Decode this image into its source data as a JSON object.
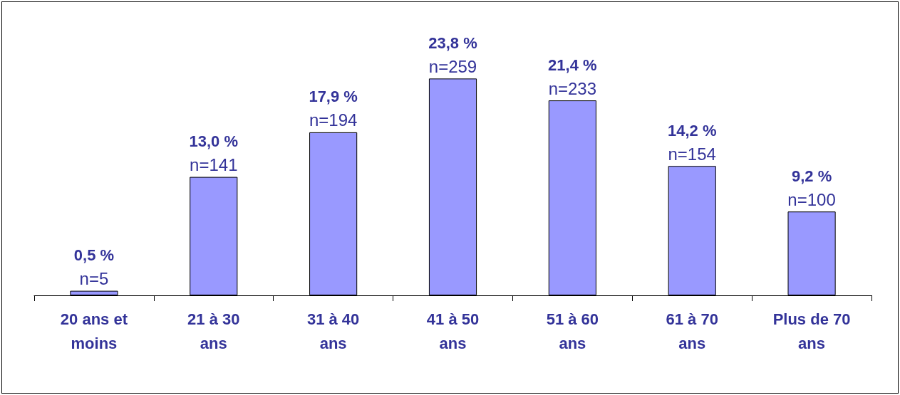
{
  "chart_data": {
    "type": "bar",
    "categories": [
      "20 ans et\nmoins",
      "21 à 30\nans",
      "31 à 40\nans",
      "41 à 50\nans",
      "51 à 60\nans",
      "61 à 70\nans",
      "Plus de 70\nans"
    ],
    "values": [
      0.5,
      13.0,
      17.9,
      23.8,
      21.4,
      14.2,
      9.2
    ],
    "value_labels": [
      "0,5 %\nn=5",
      "13,0 %\nn=141",
      "17,9 %\nn=194",
      "23,8 %\nn=259",
      "21,4 %\nn=233",
      "14,2 %\nn=154",
      "9,2 %\nn=100"
    ],
    "color": "#9999ff"
  }
}
